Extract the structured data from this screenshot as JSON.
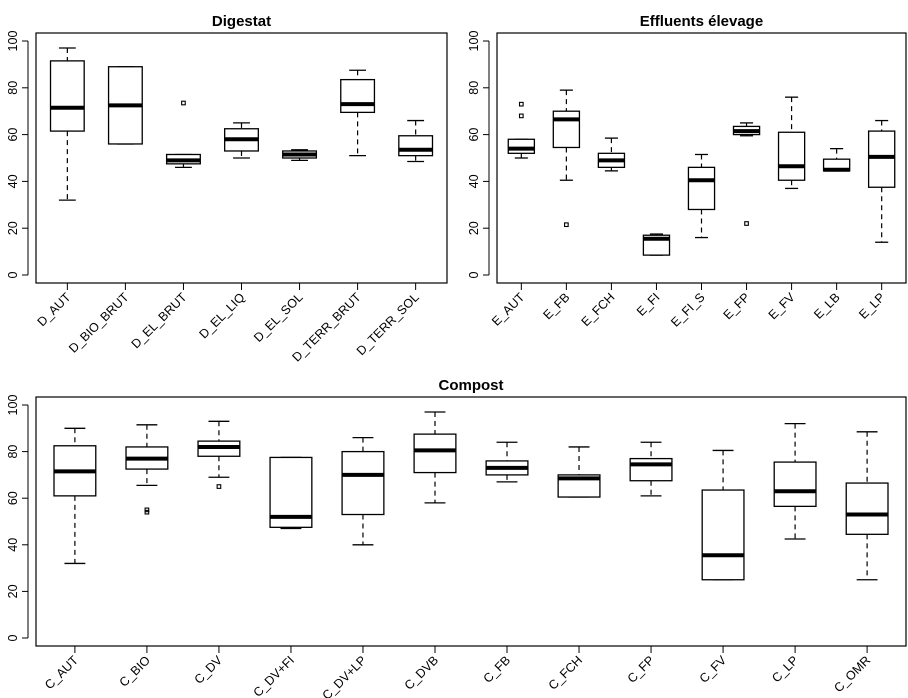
{
  "chart_data": [
    {
      "type": "box",
      "title": "Digestat",
      "xlabel": "",
      "ylabel": "",
      "ylim": [
        0,
        100
      ],
      "yticks": [
        0,
        20,
        40,
        60,
        80,
        100
      ],
      "categories": [
        "D_AUT",
        "D_BIO_BRUT",
        "D_EL_BRUT",
        "D_EL_LIQ",
        "D_EL_SOL",
        "D_TERR_BRUT",
        "D_TERR_SOL"
      ],
      "boxes": [
        {
          "min": 32,
          "q1": 61.5,
          "median": 71.5,
          "q3": 91.5,
          "max": 97,
          "outliers": []
        },
        {
          "min": 56,
          "q1": 56,
          "median": 72.5,
          "q3": 89,
          "max": 89,
          "outliers": []
        },
        {
          "min": 46,
          "q1": 47.5,
          "median": 49,
          "q3": 51.5,
          "max": 51.5,
          "outliers": [
            73.5
          ]
        },
        {
          "min": 50,
          "q1": 53,
          "median": 58,
          "q3": 62.5,
          "max": 65,
          "outliers": []
        },
        {
          "min": 49,
          "q1": 50,
          "median": 51.5,
          "q3": 53,
          "max": 53.5,
          "outliers": []
        },
        {
          "min": 51,
          "q1": 69.5,
          "median": 73,
          "q3": 83.5,
          "max": 87.5,
          "outliers": []
        },
        {
          "min": 48.5,
          "q1": 51,
          "median": 53.5,
          "q3": 59.5,
          "max": 66,
          "outliers": []
        }
      ]
    },
    {
      "type": "box",
      "title": "Effluents élevage",
      "xlabel": "",
      "ylabel": "",
      "ylim": [
        0,
        100
      ],
      "yticks": [
        0,
        20,
        40,
        60,
        80,
        100
      ],
      "categories": [
        "E_AUT",
        "E_FB",
        "E_FCH",
        "E_FI",
        "E_FI_S",
        "E_FP",
        "E_FV",
        "E_LB",
        "E_LP"
      ],
      "boxes": [
        {
          "min": 50,
          "q1": 52,
          "median": 54,
          "q3": 58,
          "max": 58,
          "outliers": [
            73,
            68
          ]
        },
        {
          "min": 40.5,
          "q1": 54.5,
          "median": 66.5,
          "q3": 70,
          "max": 79,
          "outliers": [
            21.5
          ]
        },
        {
          "min": 44.5,
          "q1": 46,
          "median": 49,
          "q3": 52,
          "max": 58.5,
          "outliers": []
        },
        {
          "min": 8.5,
          "q1": 8.5,
          "median": 15.5,
          "q3": 17,
          "max": 17.5,
          "outliers": []
        },
        {
          "min": 16,
          "q1": 28,
          "median": 40.5,
          "q3": 46,
          "max": 51.5,
          "outliers": []
        },
        {
          "min": 59.5,
          "q1": 60,
          "median": 61.5,
          "q3": 63.5,
          "max": 65,
          "outliers": [
            22
          ]
        },
        {
          "min": 37,
          "q1": 40.5,
          "median": 46.5,
          "q3": 61,
          "max": 76,
          "outliers": []
        },
        {
          "min": 44.5,
          "q1": 44.5,
          "median": 45,
          "q3": 49.5,
          "max": 54,
          "outliers": []
        },
        {
          "min": 14,
          "q1": 37.5,
          "median": 50.5,
          "q3": 61.5,
          "max": 66,
          "outliers": []
        }
      ]
    },
    {
      "type": "box",
      "title": "Compost",
      "xlabel": "",
      "ylabel": "",
      "ylim": [
        0,
        100
      ],
      "yticks": [
        0,
        20,
        40,
        60,
        80,
        100
      ],
      "categories": [
        "C_AUT",
        "C_BIO",
        "C_DV",
        "C_DV+FI",
        "C_DV+LP",
        "C_DVB",
        "C_FB",
        "C_FCH",
        "C_FP",
        "C_FV",
        "C_LP",
        "C_OMR"
      ],
      "boxes": [
        {
          "min": 32,
          "q1": 61,
          "median": 71.5,
          "q3": 82.5,
          "max": 90,
          "outliers": []
        },
        {
          "min": 65.5,
          "q1": 72.5,
          "median": 77,
          "q3": 82,
          "max": 91.5,
          "outliers": [
            55,
            54
          ]
        },
        {
          "min": 69,
          "q1": 78,
          "median": 82,
          "q3": 84.5,
          "max": 93,
          "outliers": [
            65
          ]
        },
        {
          "min": 47,
          "q1": 47.5,
          "median": 52,
          "q3": 77.5,
          "max": 77.5,
          "outliers": []
        },
        {
          "min": 40,
          "q1": 53,
          "median": 70,
          "q3": 80,
          "max": 86,
          "outliers": []
        },
        {
          "min": 58,
          "q1": 71,
          "median": 80.5,
          "q3": 87.5,
          "max": 97,
          "outliers": []
        },
        {
          "min": 67,
          "q1": 70,
          "median": 73,
          "q3": 76,
          "max": 84,
          "outliers": []
        },
        {
          "min": 60.5,
          "q1": 60.5,
          "median": 68.5,
          "q3": 70,
          "max": 82,
          "outliers": []
        },
        {
          "min": 61,
          "q1": 67.5,
          "median": 74.5,
          "q3": 77,
          "max": 84,
          "outliers": []
        },
        {
          "min": 25,
          "q1": 25,
          "median": 35.5,
          "q3": 63.5,
          "max": 80.5,
          "outliers": []
        },
        {
          "min": 42.5,
          "q1": 56.5,
          "median": 63,
          "q3": 75.5,
          "max": 92,
          "outliers": []
        },
        {
          "min": 25,
          "q1": 44.5,
          "median": 53,
          "q3": 66.5,
          "max": 88.5,
          "outliers": []
        }
      ]
    }
  ]
}
